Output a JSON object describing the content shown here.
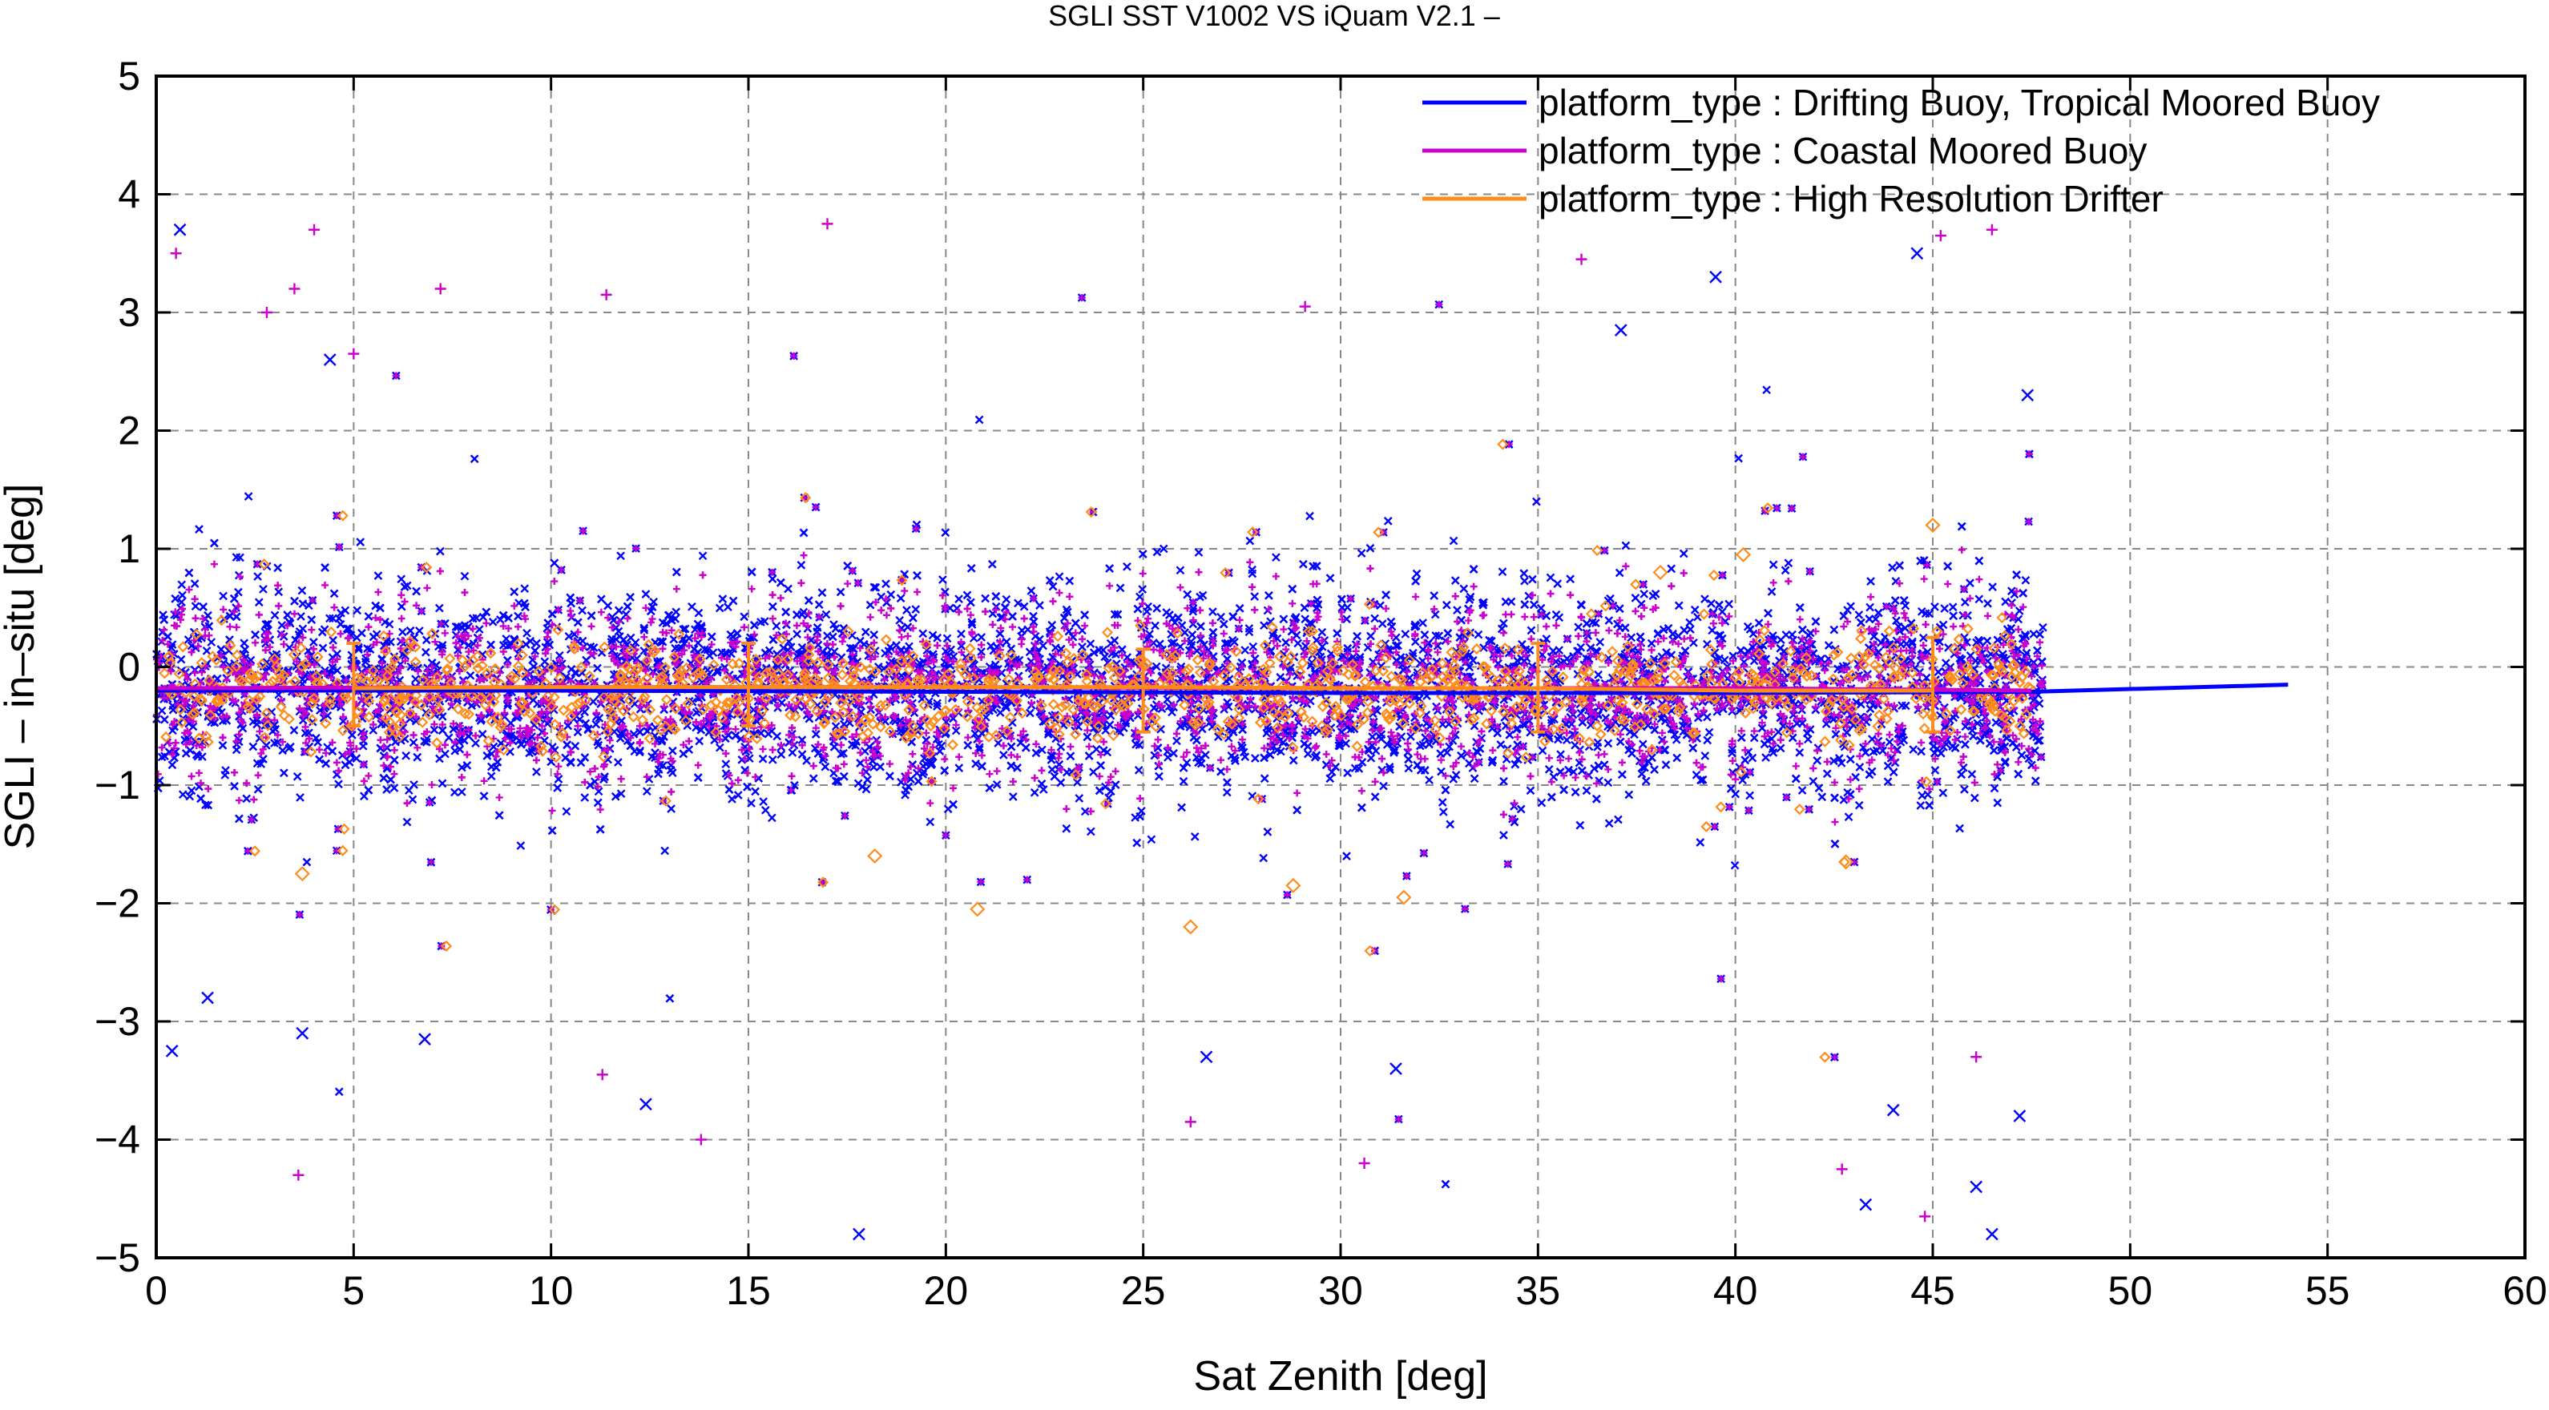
{
  "chart_data": {
    "type": "scatter",
    "title": "SGLI SST V1002 VS iQuam V2.1  –",
    "xlabel": "Sat Zenith [deg]",
    "ylabel": "SGLI – in–situ [deg]",
    "xlim": [
      0,
      60
    ],
    "ylim": [
      -5,
      5
    ],
    "xticks": [
      0,
      5,
      10,
      15,
      20,
      25,
      30,
      35,
      40,
      45,
      50,
      55,
      60
    ],
    "yticks": [
      -5,
      -4,
      -3,
      -2,
      -1,
      0,
      1,
      2,
      3,
      4,
      5
    ],
    "xtick_labels": [
      "0",
      "5",
      "10",
      "15",
      "20",
      "25",
      "30",
      "35",
      "40",
      "45",
      "50",
      "55",
      "60"
    ],
    "ytick_labels": [
      "−5",
      "−4",
      "−3",
      "−2",
      "−1",
      "0",
      "1",
      "2",
      "3",
      "4",
      "5"
    ],
    "grid": true,
    "legend_position": "top-right",
    "series": [
      {
        "name": "platform_type : Drifting Buoy, Tropical Moored Buoy",
        "color": "#0000ff",
        "marker": "x",
        "trend": {
          "x": [
            0,
            10,
            20,
            30,
            40,
            47.5,
            54
          ],
          "y": [
            -0.2,
            -0.2,
            -0.21,
            -0.22,
            -0.22,
            -0.21,
            -0.15
          ]
        },
        "outliers": [
          {
            "x": 0.6,
            "y": 3.7
          },
          {
            "x": 4.4,
            "y": 2.6
          },
          {
            "x": 17.8,
            "y": -4.8
          },
          {
            "x": 37.1,
            "y": 2.85
          },
          {
            "x": 39.5,
            "y": 3.3
          },
          {
            "x": 44.6,
            "y": 3.5
          },
          {
            "x": 46.5,
            "y": -4.8
          },
          {
            "x": 47.2,
            "y": -3.8
          },
          {
            "x": 43.3,
            "y": -4.55
          },
          {
            "x": 12.4,
            "y": -3.7
          },
          {
            "x": 26.6,
            "y": -3.3
          },
          {
            "x": 31.4,
            "y": -3.4
          },
          {
            "x": 0.4,
            "y": -3.25
          },
          {
            "x": 1.3,
            "y": -2.8
          },
          {
            "x": 47.4,
            "y": 2.3
          },
          {
            "x": 46.1,
            "y": -4.4
          },
          {
            "x": 6.8,
            "y": -3.15
          },
          {
            "x": 3.7,
            "y": -3.1
          },
          {
            "x": 44.0,
            "y": -3.75
          }
        ]
      },
      {
        "name": "platform_type : Coastal Moored Buoy",
        "color": "#cc00cc",
        "marker": "+",
        "trend": {
          "x": [
            0,
            10,
            20,
            30,
            40,
            47.5
          ],
          "y": [
            -0.18,
            -0.17,
            -0.17,
            -0.18,
            -0.18,
            -0.2
          ]
        },
        "outliers": [
          {
            "x": 0.5,
            "y": 3.5
          },
          {
            "x": 4.0,
            "y": 3.7
          },
          {
            "x": 3.5,
            "y": 3.2
          },
          {
            "x": 17.0,
            "y": 3.75
          },
          {
            "x": 7.2,
            "y": 3.2
          },
          {
            "x": 11.4,
            "y": 3.15
          },
          {
            "x": 29.1,
            "y": 3.05
          },
          {
            "x": 36.1,
            "y": 3.45
          },
          {
            "x": 45.2,
            "y": 3.65
          },
          {
            "x": 46.5,
            "y": 3.7
          },
          {
            "x": 3.6,
            "y": -4.3
          },
          {
            "x": 13.8,
            "y": -4.0
          },
          {
            "x": 42.7,
            "y": -4.25
          },
          {
            "x": 44.8,
            "y": -4.65
          },
          {
            "x": 30.6,
            "y": -4.2
          },
          {
            "x": 26.2,
            "y": -3.85
          },
          {
            "x": 11.3,
            "y": -3.45
          },
          {
            "x": 46.1,
            "y": -3.3
          },
          {
            "x": 2.8,
            "y": 3.0
          },
          {
            "x": 5.0,
            "y": 2.65
          }
        ]
      },
      {
        "name": "platform_type : High Resolution Drifter",
        "color": "#ff8c1a",
        "marker": "diamond",
        "trend": {
          "x": [
            5,
            10,
            15,
            20,
            25,
            30,
            35,
            40,
            45
          ],
          "y": [
            -0.18,
            -0.17,
            -0.17,
            -0.17,
            -0.17,
            -0.18,
            -0.18,
            -0.2,
            -0.2
          ]
        },
        "error_bars": [
          {
            "x": 5,
            "low": -0.5,
            "high": 0.2
          },
          {
            "x": 15,
            "low": -0.5,
            "high": 0.2
          },
          {
            "x": 25,
            "low": -0.55,
            "high": 0.15
          },
          {
            "x": 35,
            "low": -0.55,
            "high": 0.2
          },
          {
            "x": 45,
            "low": -0.55,
            "high": 0.25
          }
        ],
        "outliers": [
          {
            "x": 26.2,
            "y": -2.2
          },
          {
            "x": 31.6,
            "y": -1.95
          },
          {
            "x": 42.8,
            "y": -1.65
          },
          {
            "x": 20.8,
            "y": -2.05
          },
          {
            "x": 45.0,
            "y": 1.2
          },
          {
            "x": 40.2,
            "y": 0.95
          },
          {
            "x": 38.1,
            "y": 0.8
          },
          {
            "x": 3.7,
            "y": -1.75
          },
          {
            "x": 18.2,
            "y": -1.6
          },
          {
            "x": 28.8,
            "y": -1.85
          }
        ]
      }
    ]
  }
}
